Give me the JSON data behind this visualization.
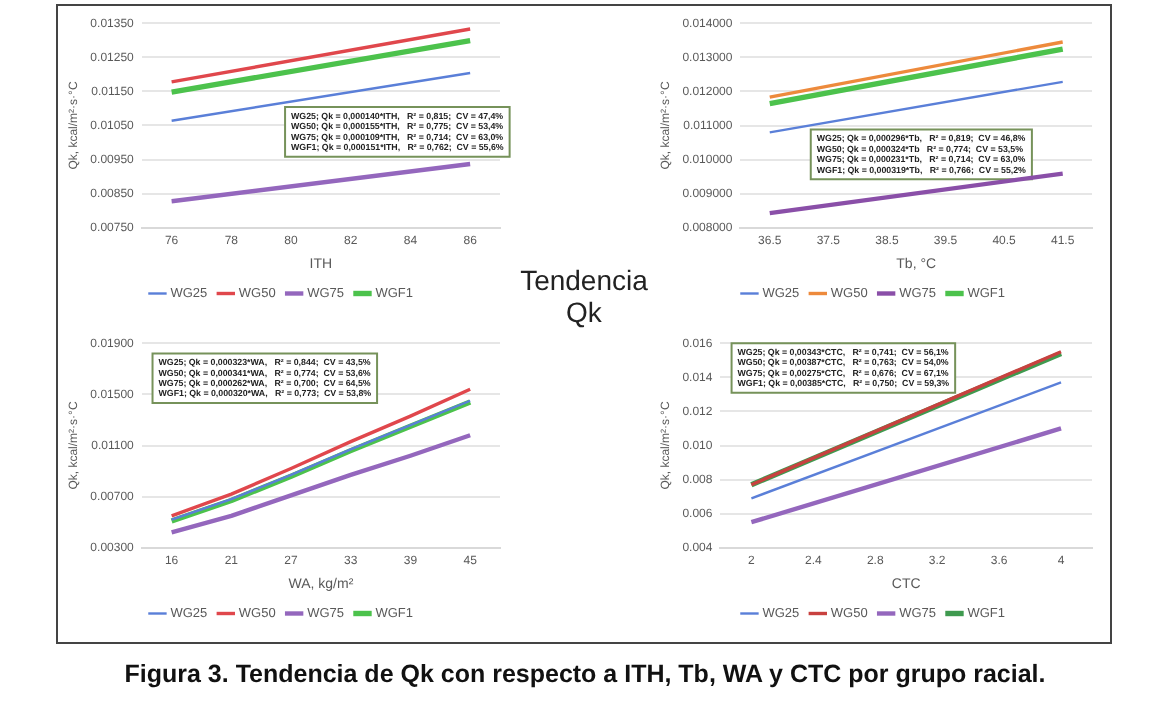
{
  "chart_data": [
    {
      "type": "line",
      "xlabel": "ITH",
      "ylabel": "Qk, kcal/m²·s·°C",
      "x": [
        76,
        86
      ],
      "xlim": [
        75,
        87
      ],
      "xticks": [
        76,
        78,
        80,
        82,
        84,
        86
      ],
      "ylim": [
        0.0075,
        0.0135
      ],
      "yticks": [
        {
          "value": 0.0075,
          "label": "0.00750"
        },
        {
          "value": 0.0085,
          "label": "0.00850"
        },
        {
          "value": 0.0095,
          "label": "0.00950"
        },
        {
          "value": 0.0105,
          "label": "0.01050"
        },
        {
          "value": 0.0115,
          "label": "0.01150"
        },
        {
          "value": 0.0125,
          "label": "0.01250"
        },
        {
          "value": 0.0135,
          "label": "0.01350"
        }
      ],
      "grid": "y",
      "legend": "bottom",
      "marker": "none",
      "line_style": "solid",
      "series": [
        {
          "name": "WG25",
          "color": "#5a7fd8",
          "values": [
            0.01064,
            0.01204
          ]
        },
        {
          "name": "WG50",
          "color": "#e0474c",
          "values": [
            0.01178,
            0.01333
          ]
        },
        {
          "name": "WG75",
          "color": "#9467bd",
          "values": [
            0.00828,
            0.00937
          ]
        },
        {
          "name": "WGF1",
          "color": "#4cc24c",
          "values": [
            0.01148,
            0.01299
          ]
        }
      ],
      "annotations": [
        "WG25; Qk = 0,000140*ITH,   R² = 0,815;  CV = 47,4%",
        "WG50; Qk = 0,000155*ITH,   R² = 0,775;  CV = 53,4%",
        "WG75; Qk = 0,000109*ITH,   R² = 0,714;  CV = 63,0%",
        "WGF1; Qk = 0,000151*ITH,   R² = 0,762;  CV = 55,6%"
      ]
    },
    {
      "type": "line",
      "xlabel": "Tb, °C",
      "ylabel": "Qk, kcal/m²·s·°C",
      "x": [
        36.5,
        41.5
      ],
      "xlim": [
        36,
        42
      ],
      "xticks": [
        36.5,
        37.5,
        38.5,
        39.5,
        40.5,
        41.5
      ],
      "ylim": [
        0.008,
        0.014
      ],
      "yticks": [
        {
          "value": 0.008,
          "label": "0.008000"
        },
        {
          "value": 0.009,
          "label": "0.009000"
        },
        {
          "value": 0.01,
          "label": "0.010000"
        },
        {
          "value": 0.011,
          "label": "0.011000"
        },
        {
          "value": 0.012,
          "label": "0.012000"
        },
        {
          "value": 0.013,
          "label": "0.013000"
        },
        {
          "value": 0.014,
          "label": "0.014000"
        }
      ],
      "grid": "y",
      "legend": "bottom",
      "marker": "none",
      "line_style": "solid",
      "series": [
        {
          "name": "WG25",
          "color": "#5a7fd8",
          "values": [
            0.0108,
            0.01228
          ]
        },
        {
          "name": "WG50",
          "color": "#ed8a3c",
          "values": [
            0.01183,
            0.01345
          ]
        },
        {
          "name": "WG75",
          "color": "#8a4fa8",
          "values": [
            0.00843,
            0.00959
          ]
        },
        {
          "name": "WGF1",
          "color": "#4cc24c",
          "values": [
            0.01164,
            0.01324
          ]
        }
      ],
      "annotations": [
        "WG25; Qk = 0,000296*Tb,   R² = 0,819;  CV = 46,8%",
        "WG50; Qk = 0,000324*Tb   R² = 0,774;  CV = 53,5%",
        "WG75; Qk = 0,000231*Tb,   R² = 0,714;  CV = 63,0%",
        "WGF1; Qk = 0,000319*Tb,   R² = 0,766;  CV = 55,2%"
      ]
    },
    {
      "type": "line",
      "xlabel": "WA, kg/m²",
      "ylabel": "Qk, kcal/m²·s·°C",
      "categories": [
        "16",
        "21",
        "27",
        "33",
        "39",
        "45"
      ],
      "ylim": [
        0.003,
        0.019
      ],
      "yticks": [
        {
          "value": 0.003,
          "label": "0.00300"
        },
        {
          "value": 0.007,
          "label": "0.00700"
        },
        {
          "value": 0.011,
          "label": "0.01100"
        },
        {
          "value": 0.015,
          "label": "0.01500"
        },
        {
          "value": 0.019,
          "label": "0.01900"
        }
      ],
      "grid": "y",
      "legend": "bottom",
      "marker": "none",
      "line_style": "solid",
      "series": [
        {
          "name": "WG25",
          "color": "#5a7fd8",
          "values": [
            0.0052,
            0.0068,
            0.0087,
            0.0107,
            0.0126,
            0.0145
          ]
        },
        {
          "name": "WG50",
          "color": "#e0474c",
          "values": [
            0.0055,
            0.0072,
            0.0092,
            0.0113,
            0.0133,
            0.0154
          ]
        },
        {
          "name": "WG75",
          "color": "#9467bd",
          "values": [
            0.0042,
            0.0055,
            0.0071,
            0.0087,
            0.0102,
            0.0118
          ]
        },
        {
          "name": "WGF1",
          "color": "#4cc24c",
          "values": [
            0.0051,
            0.0067,
            0.0086,
            0.0106,
            0.0125,
            0.0144
          ]
        }
      ],
      "annotations": [
        "WG25; Qk = 0,000323*WA,   R² = 0,844;  CV = 43,5%",
        "WG50; Qk = 0,000341*WA,   R² = 0,774;  CV = 53,6%",
        "WG75; Qk = 0,000262*WA,   R² = 0,700;  CV = 64,5%",
        "WGF1; Qk = 0,000320*WA,   R² = 0,773;  CV = 53,8%"
      ]
    },
    {
      "type": "line",
      "xlabel": "CTC",
      "ylabel": "Qk, kcal/m²·s·°C",
      "x": [
        2,
        4
      ],
      "xlim": [
        1.8,
        4.2
      ],
      "xticks": [
        2,
        2.4,
        2.8,
        3.2,
        3.6,
        4
      ],
      "ylim": [
        0.004,
        0.016
      ],
      "yticks": [
        {
          "value": 0.004,
          "label": "0.004"
        },
        {
          "value": 0.006,
          "label": "0.006"
        },
        {
          "value": 0.008,
          "label": "0.008"
        },
        {
          "value": 0.01,
          "label": "0.010"
        },
        {
          "value": 0.012,
          "label": "0.012"
        },
        {
          "value": 0.014,
          "label": "0.014"
        },
        {
          "value": 0.016,
          "label": "0.016"
        }
      ],
      "grid": "y",
      "legend": "bottom",
      "marker": "none",
      "line_style": "solid",
      "series": [
        {
          "name": "WG25",
          "color": "#5a7fd8",
          "values": [
            0.0069,
            0.0137
          ]
        },
        {
          "name": "WG50",
          "color": "#c8413f",
          "values": [
            0.0077,
            0.0155
          ]
        },
        {
          "name": "WG75",
          "color": "#9467bd",
          "values": [
            0.0055,
            0.011
          ]
        },
        {
          "name": "WGF1",
          "color": "#3f9a4f",
          "values": [
            0.0077,
            0.0154
          ]
        }
      ],
      "annotations": [
        "WG25; Qk = 0,00343*CTC,   R² = 0,741;  CV = 56,1%",
        "WG50; Qk = 0,00387*CTC,   R² = 0,763;  CV = 54,0%",
        "WG75; Qk = 0,00275*CTC,   R² = 0,676;  CV = 67,1%",
        "WGF1; Qk = 0,00385*CTC,   R² = 0,750;  CV = 59,3%"
      ]
    },
    {
      "type": "other",
      "title": "Tendencia Qk",
      "annotations": [
        "Figura 3. Tendencia de Qk con respecto a ITH, Tb, WA y CTC por grupo racial."
      ]
    }
  ]
}
